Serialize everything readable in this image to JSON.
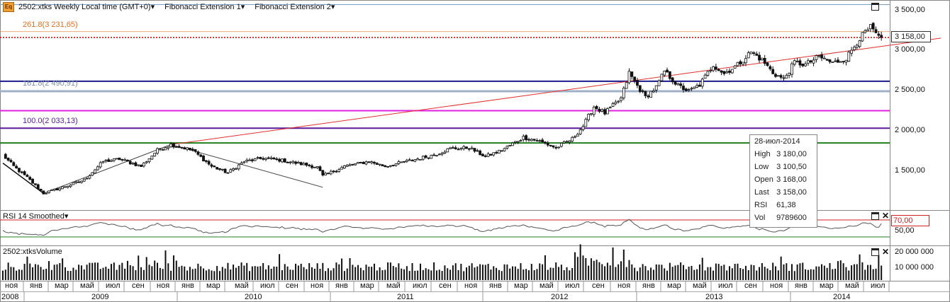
{
  "header": {
    "badge": "Eq",
    "symbol_title": "2502:xtks Weekly Local time (GMT+0)",
    "study1": "Fibonacci Extension 1",
    "study2": "Fibonacci Extension 2",
    "dropdown_glyph": "▾"
  },
  "colors": {
    "fib_261": "#e07020",
    "fib_161": "#9fb0c8",
    "fib_100": "#5a1a9a",
    "navy_line": "#1a1a8c",
    "magenta_line": "#e020e0",
    "green_line": "#208020",
    "trend_line": "#e03030",
    "price_dotted": "#c00000",
    "rsi_line": "#555555",
    "rsi_70": "#d02020",
    "rsi_30": "#208020",
    "candle": "#111111"
  },
  "chart_data": [
    {
      "type": "candlestick",
      "title": "2502:xtks Weekly Local time (GMT+0)",
      "ylim": [
        1140,
        3600
      ],
      "y_ticks": [
        "3 500,00",
        "3 000,00",
        "2 500,00",
        "2 000,00",
        "1 500,00"
      ],
      "y_tick_values": [
        3500,
        3000,
        2500,
        2000,
        1500
      ],
      "last_price": {
        "label": "3 158,00",
        "value": 3158
      },
      "fib_levels": [
        {
          "label": "261.8(3 231,65)",
          "value": 3231.65,
          "color_key": "fib_261"
        },
        {
          "label": "161.8(2 490,91)",
          "value": 2490.91,
          "color_key": "fib_161"
        },
        {
          "label": "100.0(2 033,13)",
          "value": 2033.13,
          "color_key": "fib_100"
        }
      ],
      "horizontal_lines": [
        {
          "value": 2615,
          "color_key": "navy_line"
        },
        {
          "value": 2250,
          "color_key": "magenta_line"
        },
        {
          "value": 1850,
          "color_key": "green_line"
        }
      ],
      "trend_line": {
        "from": {
          "week": 62,
          "value": 1830
        },
        "to": {
          "week": 346,
          "value": 3150
        }
      },
      "black_lines": [
        {
          "from": {
            "week": 0,
            "value": 1600
          },
          "to": {
            "week": 15,
            "value": 1225
          }
        },
        {
          "from": {
            "week": 15,
            "value": 1225
          },
          "to": {
            "week": 62,
            "value": 1830
          }
        },
        {
          "from": {
            "week": 62,
            "value": 1830
          },
          "to": {
            "week": 118,
            "value": 1300
          }
        }
      ],
      "weekly_close_anchors": [
        {
          "week": 0,
          "value": 1700
        },
        {
          "week": 4,
          "value": 1560
        },
        {
          "week": 9,
          "value": 1420
        },
        {
          "week": 15,
          "value": 1225
        },
        {
          "week": 22,
          "value": 1300
        },
        {
          "week": 30,
          "value": 1390
        },
        {
          "week": 37,
          "value": 1620
        },
        {
          "week": 43,
          "value": 1650
        },
        {
          "week": 51,
          "value": 1560
        },
        {
          "week": 57,
          "value": 1760
        },
        {
          "week": 62,
          "value": 1830
        },
        {
          "week": 70,
          "value": 1760
        },
        {
          "week": 77,
          "value": 1560
        },
        {
          "week": 83,
          "value": 1480
        },
        {
          "week": 89,
          "value": 1620
        },
        {
          "week": 96,
          "value": 1660
        },
        {
          "week": 102,
          "value": 1640
        },
        {
          "week": 110,
          "value": 1590
        },
        {
          "week": 116,
          "value": 1550
        },
        {
          "week": 118,
          "value": 1440
        },
        {
          "week": 126,
          "value": 1560
        },
        {
          "week": 135,
          "value": 1620
        },
        {
          "week": 141,
          "value": 1560
        },
        {
          "week": 150,
          "value": 1630
        },
        {
          "week": 159,
          "value": 1700
        },
        {
          "week": 165,
          "value": 1780
        },
        {
          "week": 172,
          "value": 1790
        },
        {
          "week": 178,
          "value": 1680
        },
        {
          "week": 184,
          "value": 1760
        },
        {
          "week": 192,
          "value": 1920
        },
        {
          "week": 198,
          "value": 1870
        },
        {
          "week": 204,
          "value": 1790
        },
        {
          "week": 210,
          "value": 1900
        },
        {
          "week": 214,
          "value": 2060
        },
        {
          "week": 218,
          "value": 2300
        },
        {
          "week": 222,
          "value": 2220
        },
        {
          "week": 228,
          "value": 2400
        },
        {
          "week": 231,
          "value": 2720
        },
        {
          "week": 234,
          "value": 2560
        },
        {
          "week": 237,
          "value": 2420
        },
        {
          "week": 241,
          "value": 2540
        },
        {
          "week": 244,
          "value": 2740
        },
        {
          "week": 249,
          "value": 2560
        },
        {
          "week": 253,
          "value": 2490
        },
        {
          "week": 257,
          "value": 2570
        },
        {
          "week": 262,
          "value": 2820
        },
        {
          "week": 266,
          "value": 2710
        },
        {
          "week": 271,
          "value": 2820
        },
        {
          "week": 276,
          "value": 2980
        },
        {
          "week": 280,
          "value": 2880
        },
        {
          "week": 284,
          "value": 2720
        },
        {
          "week": 288,
          "value": 2640
        },
        {
          "week": 292,
          "value": 2850
        },
        {
          "week": 296,
          "value": 2820
        },
        {
          "week": 301,
          "value": 2920
        },
        {
          "week": 306,
          "value": 2840
        },
        {
          "week": 311,
          "value": 2900
        },
        {
          "week": 316,
          "value": 3150
        },
        {
          "week": 320,
          "value": 3280
        },
        {
          "week": 323,
          "value": 3158
        }
      ]
    },
    {
      "type": "line",
      "title": "RSI 14 Smoothed",
      "ylim": [
        20,
        80
      ],
      "y_ticks": [
        "50,00"
      ],
      "y_tick_values": [
        50
      ],
      "overbought": {
        "label": "70,00",
        "value": 70
      },
      "oversold": {
        "value": 30
      },
      "last_value": 61.38
    },
    {
      "type": "bar",
      "title": "2502:xtksVolume",
      "ylim": [
        0,
        22000000
      ],
      "y_ticks": [
        "20 000 000",
        "10 000 000"
      ],
      "y_tick_values": [
        20000000,
        10000000
      ],
      "last_value": 9789600
    }
  ],
  "x_axis": {
    "months": [
      {
        "label": "ноя",
        "x": 16
      },
      {
        "label": "янв",
        "x": 51
      },
      {
        "label": "мар",
        "x": 86
      },
      {
        "label": "май",
        "x": 122
      },
      {
        "label": "июл",
        "x": 158
      },
      {
        "label": "сен",
        "x": 195
      },
      {
        "label": "ноя",
        "x": 230
      },
      {
        "label": "янв",
        "x": 265
      },
      {
        "label": "мар",
        "x": 300
      },
      {
        "label": "май",
        "x": 340
      },
      {
        "label": "июл",
        "x": 376
      },
      {
        "label": "сен",
        "x": 412
      },
      {
        "label": "ноя",
        "x": 447
      },
      {
        "label": "янв",
        "x": 482
      },
      {
        "label": "мар",
        "x": 517
      },
      {
        "label": "май",
        "x": 554
      },
      {
        "label": "июл",
        "x": 591
      },
      {
        "label": "сен",
        "x": 628
      },
      {
        "label": "ноя",
        "x": 664
      },
      {
        "label": "янв",
        "x": 699
      },
      {
        "label": "мар",
        "x": 734
      },
      {
        "label": "май",
        "x": 770
      },
      {
        "label": "июл",
        "x": 806
      },
      {
        "label": "сен",
        "x": 844
      },
      {
        "label": "ноя",
        "x": 880
      },
      {
        "label": "янв",
        "x": 915
      },
      {
        "label": "мар",
        "x": 950
      },
      {
        "label": "май",
        "x": 986
      },
      {
        "label": "июл",
        "x": 1022
      },
      {
        "label": "сен",
        "x": 1059
      },
      {
        "label": "ноя",
        "x": 1095
      },
      {
        "label": "янв",
        "x": 1130
      },
      {
        "label": "мар",
        "x": 1165
      },
      {
        "label": "май",
        "x": 1201
      },
      {
        "label": "июл",
        "x": 1237
      }
    ],
    "years": [
      {
        "label": "2008",
        "x": 14
      },
      {
        "label": "2009",
        "x": 141
      },
      {
        "label": "2010",
        "x": 357
      },
      {
        "label": "2011",
        "x": 572
      },
      {
        "label": "2012",
        "x": 789
      },
      {
        "label": "2013",
        "x": 1007
      },
      {
        "label": "2014",
        "x": 1187
      }
    ]
  },
  "tooltip": {
    "date": "28-июл-2014",
    "rows": [
      {
        "key": "High",
        "value": "3 180,00"
      },
      {
        "key": "Low",
        "value": "3 100,50"
      },
      {
        "key": "Open",
        "value": "3 168,00"
      },
      {
        "key": "Last",
        "value": "3 158,00"
      },
      {
        "key": "RSI",
        "value": "61,38"
      },
      {
        "key": "Vol",
        "value": "9789600"
      }
    ]
  }
}
